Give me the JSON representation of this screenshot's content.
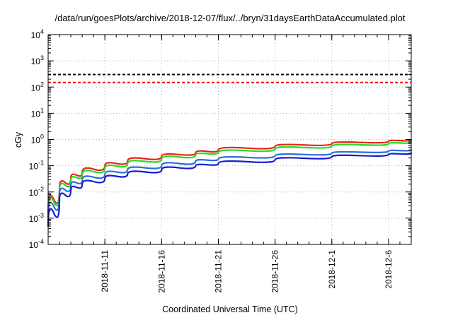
{
  "chart_data": {
    "type": "line",
    "title": "/data/run/goesPlots/archive/2018-12-07/flux/../bryn/31daysEarthDataAccumulated.plot",
    "xlabel": "Coordinated Universal Time (UTC)",
    "ylabel": "cGy",
    "yscale": "log",
    "ylim": [
      0.0001,
      10000
    ],
    "xlim": [
      "2018-11-06",
      "2018-12-08"
    ],
    "grid": true,
    "x_ticks": [
      "2018-11-11",
      "2018-11-16",
      "2018-11-21",
      "2018-11-26",
      "2018-12-1",
      "2018-12-6"
    ],
    "y_ticks": [
      {
        "value": 0.0001,
        "base": "10",
        "exp": "-4"
      },
      {
        "value": 0.001,
        "base": "10",
        "exp": "-3"
      },
      {
        "value": 0.01,
        "base": "10",
        "exp": "-2"
      },
      {
        "value": 0.1,
        "base": "10",
        "exp": "-1"
      },
      {
        "value": 1,
        "base": "10",
        "exp": "0"
      },
      {
        "value": 10,
        "base": "10",
        "exp": "1"
      },
      {
        "value": 100,
        "base": "10",
        "exp": "2"
      },
      {
        "value": 1000,
        "base": "10",
        "exp": "3"
      },
      {
        "value": 10000,
        "base": "10",
        "exp": "4"
      }
    ],
    "reference_lines": [
      {
        "value": 300,
        "color": "#000000",
        "style": "dashed"
      },
      {
        "value": 150,
        "color": "#ff0000",
        "style": "dashed"
      }
    ],
    "series": [
      {
        "color": "#e8221b",
        "x": [
          "2018-11-06",
          "2018-11-07",
          "2018-11-08",
          "2018-11-09",
          "2018-11-11",
          "2018-11-13",
          "2018-11-16",
          "2018-11-19",
          "2018-11-21",
          "2018-11-26",
          "2018-12-01",
          "2018-12-06",
          "2018-12-08"
        ],
        "values": [
          0.0018,
          0.015,
          0.035,
          0.055,
          0.1,
          0.15,
          0.23,
          0.31,
          0.4,
          0.55,
          0.7,
          0.86,
          0.95
        ]
      },
      {
        "color": "#22dd22",
        "x": [
          "2018-11-06",
          "2018-11-07",
          "2018-11-08",
          "2018-11-09",
          "2018-11-11",
          "2018-11-13",
          "2018-11-16",
          "2018-11-19",
          "2018-11-21",
          "2018-11-26",
          "2018-12-01",
          "2018-12-06",
          "2018-12-08"
        ],
        "values": [
          0.0015,
          0.012,
          0.028,
          0.045,
          0.08,
          0.12,
          0.18,
          0.26,
          0.32,
          0.44,
          0.56,
          0.7,
          0.78
        ]
      },
      {
        "color": "#2a6fdb",
        "x": [
          "2018-11-06",
          "2018-11-07",
          "2018-11-08",
          "2018-11-09",
          "2018-11-11",
          "2018-11-13",
          "2018-11-16",
          "2018-11-19",
          "2018-11-21",
          "2018-11-26",
          "2018-12-01",
          "2018-12-06",
          "2018-12-08"
        ],
        "values": [
          0.001,
          0.008,
          0.018,
          0.028,
          0.048,
          0.07,
          0.1,
          0.15,
          0.18,
          0.24,
          0.3,
          0.36,
          0.4
        ]
      },
      {
        "color": "#1a1ad6",
        "x": [
          "2018-11-06",
          "2018-11-07",
          "2018-11-08",
          "2018-11-09",
          "2018-11-11",
          "2018-11-13",
          "2018-11-16",
          "2018-11-19",
          "2018-11-21",
          "2018-11-26",
          "2018-12-01",
          "2018-12-06",
          "2018-12-08"
        ],
        "values": [
          0.0005,
          0.005,
          0.012,
          0.019,
          0.033,
          0.048,
          0.07,
          0.1,
          0.12,
          0.17,
          0.22,
          0.27,
          0.3
        ]
      }
    ]
  }
}
